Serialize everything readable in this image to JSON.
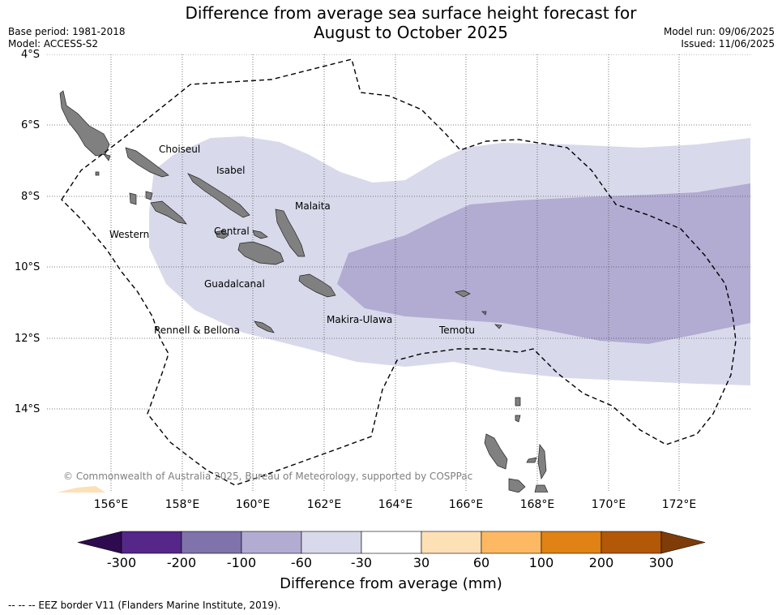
{
  "title_line1": "Difference from average sea surface height forecast for",
  "title_line2": "August to October 2025",
  "base_period": "Base period: 1981-2018",
  "model": "Model: ACCESS-S2",
  "model_run": "Model run: 09/06/2025",
  "issued": "Issued: 11/06/2025",
  "lat_labels": [
    "4°S",
    "6°S",
    "8°S",
    "10°S",
    "12°S",
    "14°S"
  ],
  "lon_labels": [
    "156°E",
    "158°E",
    "160°E",
    "162°E",
    "164°E",
    "166°E",
    "168°E",
    "170°E",
    "172°E"
  ],
  "provinces": [
    "Choiseul",
    "Isabel",
    "Malaita",
    "Western",
    "Central",
    "Guadalcanal",
    "Makira-Ulawa",
    "Rennell & Bellona",
    "Temotu"
  ],
  "copyright": "© Commonwealth of Australia 2025, Bureau of Meteorology, supported by COSPPac",
  "colorbar": {
    "ticks": [
      "-300",
      "-200",
      "-100",
      "-60",
      "-30",
      "30",
      "60",
      "100",
      "200",
      "300"
    ],
    "colors": [
      "#2e0a4f",
      "#542788",
      "#8073ac",
      "#b2abd2",
      "#d8daeb",
      "#ffffff",
      "#fee0b6",
      "#fdb863",
      "#e08214",
      "#b35806",
      "#7f3b08"
    ],
    "label": "Difference from average (mm)"
  },
  "legend_text": "--  --  -- EEZ border V11 (Flanders Marine Institute, 2019).",
  "colors": {
    "band_light": "#d8daeb",
    "band_medium": "#b2abd2",
    "land": "#808080",
    "positive_patch": "#fee0b6"
  }
}
